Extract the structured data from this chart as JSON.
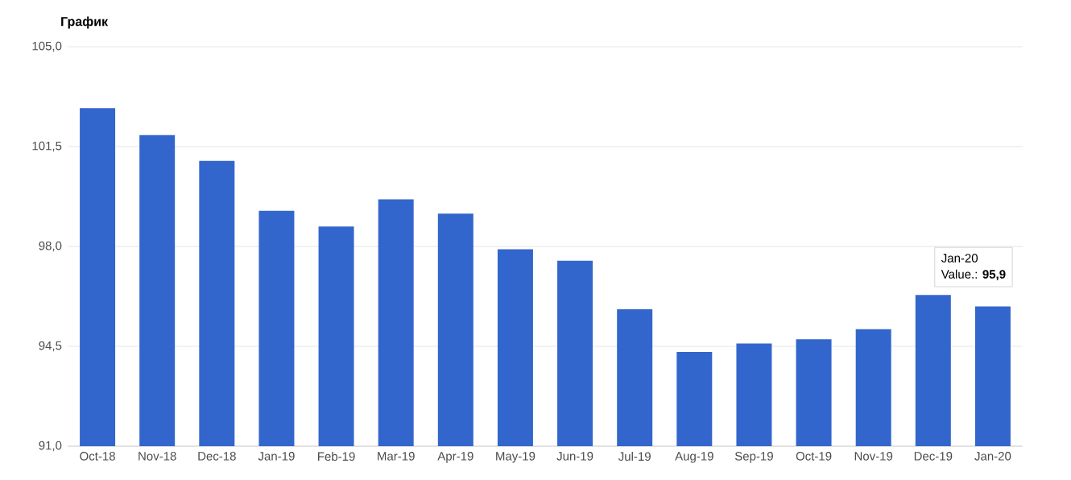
{
  "chart_data": {
    "type": "bar",
    "title": "График",
    "categories": [
      "Oct-18",
      "Nov-18",
      "Dec-18",
      "Jan-19",
      "Feb-19",
      "Mar-19",
      "Apr-19",
      "May-19",
      "Jun-19",
      "Jul-19",
      "Aug-19",
      "Sep-19",
      "Oct-19",
      "Nov-19",
      "Dec-19",
      "Jan-20"
    ],
    "values": [
      102.85,
      101.9,
      101.0,
      99.25,
      98.7,
      99.65,
      99.15,
      97.9,
      97.5,
      95.8,
      94.3,
      94.6,
      94.75,
      95.1,
      96.3,
      95.9
    ],
    "color": "#3366cc",
    "ylim": [
      91,
      105
    ],
    "yticks": [
      {
        "value": 91,
        "label": "91,0"
      },
      {
        "value": 94.5,
        "label": "94,5"
      },
      {
        "value": 98,
        "label": "98,0"
      },
      {
        "value": 101.5,
        "label": "101,5"
      },
      {
        "value": 105,
        "label": "105,0"
      }
    ],
    "grid": "y",
    "annotations": [
      "Jan-20",
      "Value.: **95,9**"
    ]
  }
}
